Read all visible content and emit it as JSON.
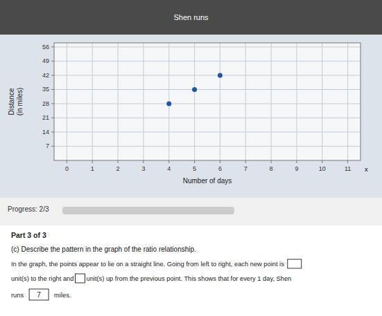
{
  "chart_data": {
    "type": "scatter",
    "title": "Shen runs",
    "x": [
      4,
      5,
      6
    ],
    "values": [
      28,
      35,
      42
    ],
    "color": "#2255aa",
    "xlim": [
      -0.5,
      11.5
    ],
    "ylim": [
      0,
      58
    ],
    "xticks": [
      0,
      1,
      2,
      3,
      4,
      5,
      6,
      7,
      8,
      9,
      10,
      11
    ],
    "yticks": [
      7,
      14,
      21,
      28,
      35,
      42,
      49,
      56
    ],
    "xlabel": "Number of days",
    "ylabel": "Distance\n(in miles)",
    "grid": true,
    "annotations": [
      "x",
      "Progress: 2/3",
      "Part 3 of 3",
      "(c) Describe the pattern in the graph of the ratio relationship.",
      "In the graph, the points appear to lie on a straight line. Going from left to right, each new point is",
      "unit(s) to the right and       unit(s) up from the previous point. This shows that for every 1 day, Shen",
      "runs",
      "7",
      "miles."
    ]
  }
}
